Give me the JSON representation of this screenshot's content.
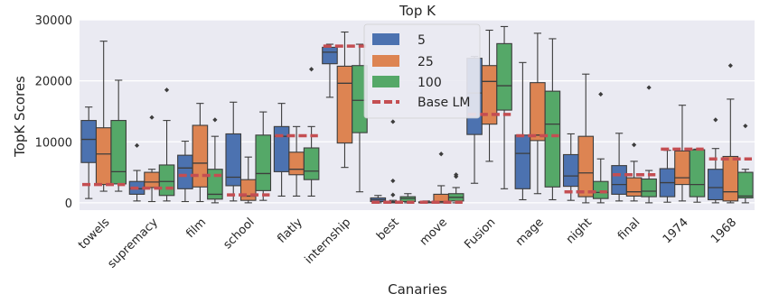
{
  "chart_data": {
    "type": "box",
    "title": "Top K",
    "xlabel": "Canaries",
    "ylabel": "TopK Scores",
    "ylim": [
      -1200,
      30000
    ],
    "yticks": [
      0,
      10000,
      20000,
      30000
    ],
    "ytick_labels": [
      "0",
      "10000",
      "20000",
      "30000"
    ],
    "grid": true,
    "legend_position": "top-center",
    "colors": {
      "background": "#EAEAF2",
      "grid": "#FFFFFF",
      "series": [
        "#4C72B0",
        "#DD8452",
        "#55A868"
      ],
      "baseline": "#C44E52"
    },
    "categories": [
      "towels",
      "supremacy",
      "film",
      "school",
      "flatly",
      "internship",
      "best",
      "move",
      "Fusion",
      "mage",
      "night",
      "final",
      "1974",
      "1968"
    ],
    "series": [
      {
        "name": "5",
        "boxes": [
          {
            "q1": 6600,
            "median": 10400,
            "q3": 13500,
            "whisker_low": 700,
            "whisker_high": 15700,
            "outliers": []
          },
          {
            "q1": 1400,
            "median": 2300,
            "q3": 3500,
            "whisker_low": 300,
            "whisker_high": 5300,
            "outliers": [
              9400
            ]
          },
          {
            "q1": 2300,
            "median": 5700,
            "q3": 7800,
            "whisker_low": 200,
            "whisker_high": 10100,
            "outliers": []
          },
          {
            "q1": 2800,
            "median": 4200,
            "q3": 11300,
            "whisker_low": 300,
            "whisker_high": 16500,
            "outliers": []
          },
          {
            "q1": 5100,
            "median": 10900,
            "q3": 12500,
            "whisker_low": 1100,
            "whisker_high": 16300,
            "outliers": []
          },
          {
            "q1": 22800,
            "median": 24700,
            "q3": 25500,
            "whisker_low": 17300,
            "whisker_high": 26000,
            "outliers": []
          },
          {
            "q1": 200,
            "median": 500,
            "q3": 800,
            "whisker_low": 0,
            "whisker_high": 1200,
            "outliers": []
          },
          {
            "q1": 0,
            "median": 50,
            "q3": 150,
            "whisker_low": 0,
            "whisker_high": 300,
            "outliers": []
          },
          {
            "q1": 11200,
            "median": 18000,
            "q3": 23700,
            "whisker_low": 3200,
            "whisker_high": 24000,
            "outliers": []
          },
          {
            "q1": 2300,
            "median": 8100,
            "q3": 11100,
            "whisker_low": 500,
            "whisker_high": 23000,
            "outliers": []
          },
          {
            "q1": 2700,
            "median": 4400,
            "q3": 7900,
            "whisker_low": 400,
            "whisker_high": 11300,
            "outliers": []
          },
          {
            "q1": 1400,
            "median": 3000,
            "q3": 6100,
            "whisker_low": 300,
            "whisker_high": 11400,
            "outliers": []
          },
          {
            "q1": 1000,
            "median": 3300,
            "q3": 5600,
            "whisker_low": 100,
            "whisker_high": 8600,
            "outliers": []
          },
          {
            "q1": 500,
            "median": 2500,
            "q3": 5500,
            "whisker_low": 0,
            "whisker_high": 8900,
            "outliers": [
              13600
            ]
          }
        ]
      },
      {
        "name": "25",
        "boxes": [
          {
            "q1": 3000,
            "median": 8000,
            "q3": 12300,
            "whisker_low": 1900,
            "whisker_high": 26500,
            "outliers": []
          },
          {
            "q1": 2500,
            "median": 3400,
            "q3": 5000,
            "whisker_low": 200,
            "whisker_high": 5500,
            "outliers": [
              14000
            ]
          },
          {
            "q1": 2600,
            "median": 6500,
            "q3": 12700,
            "whisker_low": 200,
            "whisker_high": 16300,
            "outliers": []
          },
          {
            "q1": 400,
            "median": 1100,
            "q3": 3800,
            "whisker_low": 0,
            "whisker_high": 7500,
            "outliers": []
          },
          {
            "q1": 4600,
            "median": 5500,
            "q3": 8300,
            "whisker_low": 1100,
            "whisker_high": 12500,
            "outliers": []
          },
          {
            "q1": 9800,
            "median": 19600,
            "q3": 22400,
            "whisker_low": 5800,
            "whisker_high": 28000,
            "outliers": []
          },
          {
            "q1": 0,
            "median": 100,
            "q3": 200,
            "whisker_low": 0,
            "whisker_high": 400,
            "outliers": [
              1300,
              3600,
              13300
            ]
          },
          {
            "q1": 0,
            "median": 200,
            "q3": 1400,
            "whisker_low": 0,
            "whisker_high": 2800,
            "outliers": [
              8000
            ]
          },
          {
            "q1": 12900,
            "median": 19900,
            "q3": 22500,
            "whisker_low": 6800,
            "whisker_high": 28300,
            "outliers": []
          },
          {
            "q1": 10200,
            "median": 11100,
            "q3": 19700,
            "whisker_low": 1500,
            "whisker_high": 27800,
            "outliers": []
          },
          {
            "q1": 1000,
            "median": 4900,
            "q3": 10900,
            "whisker_low": 0,
            "whisker_high": 21100,
            "outliers": []
          },
          {
            "q1": 1100,
            "median": 1800,
            "q3": 4100,
            "whisker_low": 300,
            "whisker_high": 6800,
            "outliers": [
              9500
            ]
          },
          {
            "q1": 3000,
            "median": 4100,
            "q3": 8500,
            "whisker_low": 300,
            "whisker_high": 16000,
            "outliers": []
          },
          {
            "q1": 300,
            "median": 1800,
            "q3": 7600,
            "whisker_low": 0,
            "whisker_high": 17000,
            "outliers": [
              22500
            ]
          }
        ]
      },
      {
        "name": "100",
        "boxes": [
          {
            "q1": 3100,
            "median": 5100,
            "q3": 13500,
            "whisker_low": 1900,
            "whisker_high": 20100,
            "outliers": []
          },
          {
            "q1": 1200,
            "median": 3500,
            "q3": 6200,
            "whisker_low": 300,
            "whisker_high": 13500,
            "outliers": [
              18500
            ]
          },
          {
            "q1": 600,
            "median": 1400,
            "q3": 5500,
            "whisker_low": 0,
            "whisker_high": 10900,
            "outliers": [
              13600
            ]
          },
          {
            "q1": 2000,
            "median": 4800,
            "q3": 11100,
            "whisker_low": 400,
            "whisker_high": 14900,
            "outliers": []
          },
          {
            "q1": 3800,
            "median": 5200,
            "q3": 9000,
            "whisker_low": 1100,
            "whisker_high": 12500,
            "outliers": [
              21900
            ]
          },
          {
            "q1": 11500,
            "median": 16800,
            "q3": 22500,
            "whisker_low": 1800,
            "whisker_high": 26000,
            "outliers": []
          },
          {
            "q1": 200,
            "median": 700,
            "q3": 1000,
            "whisker_low": 0,
            "whisker_high": 1500,
            "outliers": []
          },
          {
            "q1": 300,
            "median": 900,
            "q3": 1500,
            "whisker_low": 0,
            "whisker_high": 2500,
            "outliers": [
              4300,
              4600
            ]
          },
          {
            "q1": 15200,
            "median": 19200,
            "q3": 26100,
            "whisker_low": 2300,
            "whisker_high": 28900,
            "outliers": []
          },
          {
            "q1": 2600,
            "median": 12900,
            "q3": 18300,
            "whisker_low": 500,
            "whisker_high": 26900,
            "outliers": []
          },
          {
            "q1": 700,
            "median": 1700,
            "q3": 3500,
            "whisker_low": 0,
            "whisker_high": 7200,
            "outliers": [
              17800
            ]
          },
          {
            "q1": 1000,
            "median": 1900,
            "q3": 3900,
            "whisker_low": 0,
            "whisker_high": 5300,
            "outliers": [
              18900
            ]
          },
          {
            "q1": 1000,
            "median": 3000,
            "q3": 8700,
            "whisker_low": 100,
            "whisker_high": 8800,
            "outliers": []
          },
          {
            "q1": 800,
            "median": 1100,
            "q3": 5000,
            "whisker_low": 0,
            "whisker_high": 5500,
            "outliers": [
              12600
            ]
          }
        ]
      }
    ],
    "baseline": {
      "name": "Base LM",
      "values": [
        3000,
        2400,
        4500,
        1300,
        11000,
        25700,
        100,
        100,
        14500,
        11000,
        1800,
        4600,
        8800,
        7200
      ]
    },
    "legend": [
      "5",
      "25",
      "100",
      "Base LM"
    ]
  }
}
